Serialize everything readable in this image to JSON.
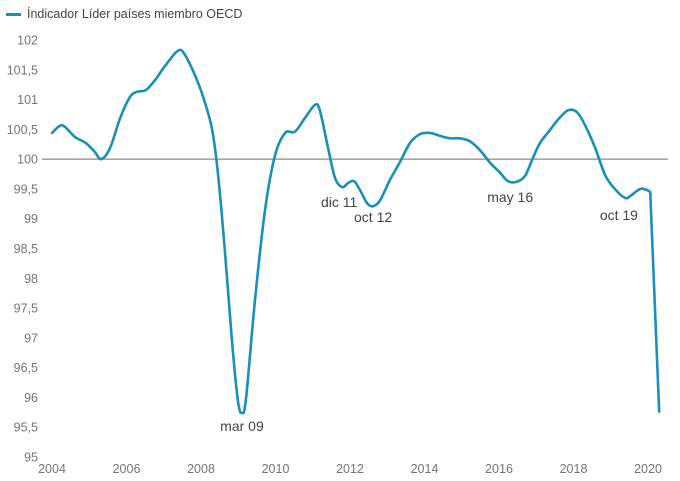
{
  "chart_data": {
    "type": "line",
    "title": "",
    "xlabel": "",
    "ylabel": "",
    "xlim": [
      2004,
      2020.35
    ],
    "ylim": [
      95,
      102
    ],
    "grid": false,
    "reference_line": 100,
    "legend_placement": "top-left",
    "x_ticks": [
      "2004",
      "2006",
      "2008",
      "2010",
      "2012",
      "2014",
      "2016",
      "2018",
      "2020"
    ],
    "y_ticks": [
      "102",
      "101,5",
      "101",
      "100,5",
      "100",
      "99,5",
      "99",
      "98,5",
      "98",
      "97,5",
      "97",
      "96,5",
      "96",
      "95,5",
      "95"
    ],
    "series": [
      {
        "name": "Índicador Líder países miembro OECD",
        "color": "#1a8fb8",
        "points": [
          [
            2004.0,
            100.44
          ],
          [
            2004.21,
            100.56
          ],
          [
            2004.35,
            100.54
          ],
          [
            2004.62,
            100.37
          ],
          [
            2004.91,
            100.27
          ],
          [
            2005.15,
            100.12
          ],
          [
            2005.32,
            100.0
          ],
          [
            2005.56,
            100.19
          ],
          [
            2005.83,
            100.69
          ],
          [
            2006.09,
            101.04
          ],
          [
            2006.28,
            101.13
          ],
          [
            2006.52,
            101.16
          ],
          [
            2006.77,
            101.33
          ],
          [
            2007.03,
            101.56
          ],
          [
            2007.38,
            101.82
          ],
          [
            2007.57,
            101.75
          ],
          [
            2007.89,
            101.33
          ],
          [
            2008.11,
            100.94
          ],
          [
            2008.3,
            100.49
          ],
          [
            2008.46,
            99.73
          ],
          [
            2008.64,
            98.47
          ],
          [
            2008.83,
            96.96
          ],
          [
            2008.99,
            95.95
          ],
          [
            2009.1,
            95.74
          ],
          [
            2009.21,
            95.99
          ],
          [
            2009.45,
            97.64
          ],
          [
            2009.72,
            99.15
          ],
          [
            2009.99,
            100.07
          ],
          [
            2010.26,
            100.44
          ],
          [
            2010.52,
            100.46
          ],
          [
            2010.79,
            100.69
          ],
          [
            2011.06,
            100.91
          ],
          [
            2011.19,
            100.82
          ],
          [
            2011.41,
            100.19
          ],
          [
            2011.6,
            99.68
          ],
          [
            2011.79,
            99.53
          ],
          [
            2011.95,
            99.6
          ],
          [
            2012.11,
            99.63
          ],
          [
            2012.27,
            99.48
          ],
          [
            2012.46,
            99.26
          ],
          [
            2012.62,
            99.21
          ],
          [
            2012.81,
            99.31
          ],
          [
            2013.07,
            99.65
          ],
          [
            2013.34,
            99.95
          ],
          [
            2013.61,
            100.27
          ],
          [
            2013.88,
            100.42
          ],
          [
            2014.15,
            100.44
          ],
          [
            2014.42,
            100.39
          ],
          [
            2014.68,
            100.35
          ],
          [
            2014.95,
            100.35
          ],
          [
            2015.22,
            100.3
          ],
          [
            2015.49,
            100.15
          ],
          [
            2015.76,
            99.94
          ],
          [
            2016.03,
            99.77
          ],
          [
            2016.24,
            99.63
          ],
          [
            2016.48,
            99.62
          ],
          [
            2016.7,
            99.72
          ],
          [
            2016.89,
            99.99
          ],
          [
            2017.1,
            100.27
          ],
          [
            2017.37,
            100.49
          ],
          [
            2017.58,
            100.66
          ],
          [
            2017.85,
            100.82
          ],
          [
            2018.09,
            100.79
          ],
          [
            2018.31,
            100.57
          ],
          [
            2018.58,
            100.19
          ],
          [
            2018.85,
            99.73
          ],
          [
            2019.11,
            99.5
          ],
          [
            2019.38,
            99.35
          ],
          [
            2019.52,
            99.38
          ],
          [
            2019.79,
            99.5
          ],
          [
            2019.98,
            99.48
          ],
          [
            2020.06,
            99.45
          ],
          [
            2020.3,
            95.76
          ]
        ]
      }
    ],
    "annotations": [
      {
        "text": "mar 09",
        "x": 2009.1,
        "y": 95.74
      },
      {
        "text": "dic 11",
        "x": 2011.79,
        "y": 99.53
      },
      {
        "text": "oct 12",
        "x": 2012.62,
        "y": 99.21
      },
      {
        "text": "may 16",
        "x": 2016.3,
        "y": 99.62
      },
      {
        "text": "oct 19",
        "x": 2019.38,
        "y": 99.35
      }
    ]
  }
}
